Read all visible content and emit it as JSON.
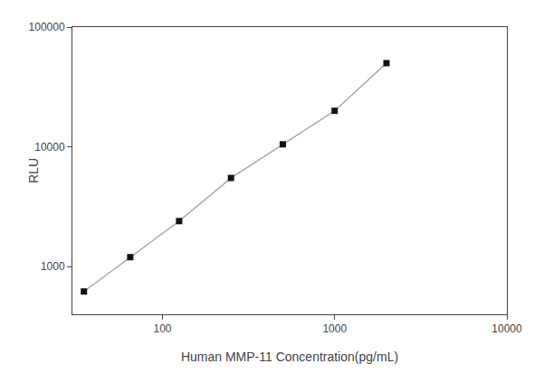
{
  "chart_data": {
    "type": "line",
    "xlabel": "Human MMP-11 Concentration(pg/mL)",
    "ylabel": "RLU",
    "x": [
      35,
      65,
      125,
      250,
      500,
      1000,
      2000
    ],
    "series": [
      {
        "type": "line",
        "color": "#aaaaaa",
        "values": [
          620,
          1200,
          2400,
          5500,
          10500,
          20000,
          50000
        ]
      },
      {
        "type": "scatter",
        "color": "#111111",
        "marker": "square",
        "values": [
          620,
          1200,
          2400,
          5500,
          10500,
          20000,
          50000
        ]
      }
    ],
    "xlim": [
      30,
      10000
    ],
    "ylim": [
      400,
      100000
    ],
    "xticks": [
      100,
      1000,
      10000
    ],
    "yticks": [
      1000,
      10000,
      100000
    ],
    "log": true,
    "grid": false
  }
}
